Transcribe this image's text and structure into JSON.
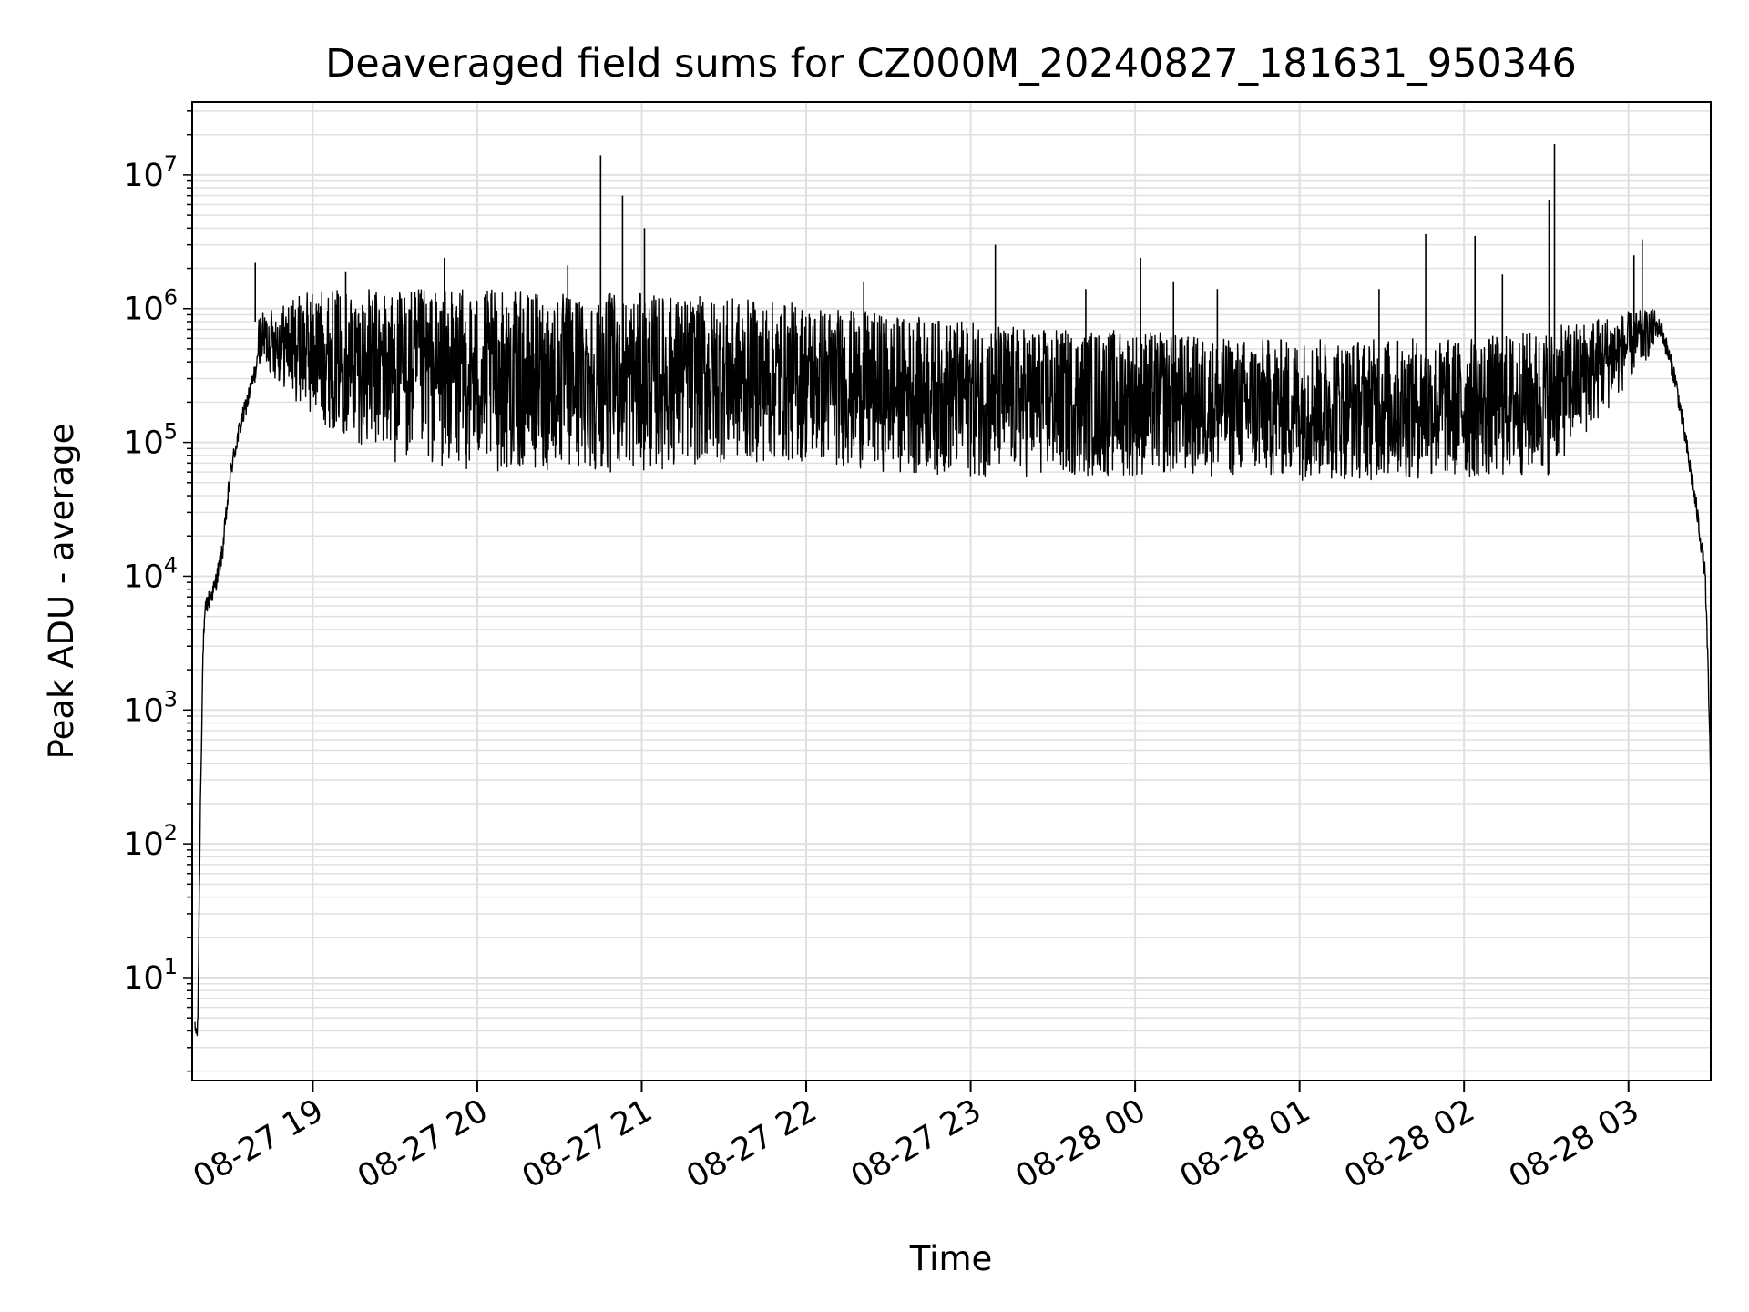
{
  "chart_data": {
    "type": "line",
    "title": "Deaveraged field sums for CZ000M_20240827_181631_950346",
    "xlabel": "Time",
    "ylabel": "Peak ADU - average",
    "yscale": "log",
    "grid": true,
    "legend": "none",
    "line_color": "#000000",
    "grid_color": "#e0e0e0",
    "xlim": [
      "2024-08-27 18:16",
      "2024-08-28 03:30"
    ],
    "ylim": [
      1.7,
      35000000
    ],
    "xticks": [
      {
        "value": "2024-08-27 19:00",
        "label": "08-27 19"
      },
      {
        "value": "2024-08-27 20:00",
        "label": "08-27 20"
      },
      {
        "value": "2024-08-27 21:00",
        "label": "08-27 21"
      },
      {
        "value": "2024-08-27 22:00",
        "label": "08-27 22"
      },
      {
        "value": "2024-08-27 23:00",
        "label": "08-27 23"
      },
      {
        "value": "2024-08-28 00:00",
        "label": "08-28 00"
      },
      {
        "value": "2024-08-28 01:00",
        "label": "08-28 01"
      },
      {
        "value": "2024-08-28 02:00",
        "label": "08-28 02"
      },
      {
        "value": "2024-08-28 03:00",
        "label": "08-28 03"
      }
    ],
    "yticks": [
      {
        "value": 10,
        "base": "10",
        "exp": "1"
      },
      {
        "value": 100,
        "base": "10",
        "exp": "2"
      },
      {
        "value": 1000,
        "base": "10",
        "exp": "3"
      },
      {
        "value": 10000,
        "base": "10",
        "exp": "4"
      },
      {
        "value": 100000,
        "base": "10",
        "exp": "5"
      },
      {
        "value": 1000000,
        "base": "10",
        "exp": "6"
      },
      {
        "value": 10000000,
        "base": "10",
        "exp": "7"
      }
    ],
    "series": [
      {
        "x": [
          "2024-08-27 18:17",
          "2024-08-27 18:18",
          "2024-08-27 18:19",
          "2024-08-27 18:20",
          "2024-08-27 18:21",
          "2024-08-27 18:24",
          "2024-08-27 18:27",
          "2024-08-27 18:30",
          "2024-08-27 18:33",
          "2024-08-27 18:36",
          "2024-08-27 18:40",
          "2024-08-27 18:44",
          "2024-08-27 18:48",
          "2024-08-27 18:52",
          "2024-08-27 18:55",
          "2024-08-27 18:58",
          "2024-08-27 19:00",
          "2024-08-27 19:05",
          "2024-08-27 19:10",
          "2024-08-27 19:15",
          "2024-08-27 19:20",
          "2024-08-27 19:30",
          "2024-08-27 19:45",
          "2024-08-27 20:00",
          "2024-08-27 20:15",
          "2024-08-27 20:30",
          "2024-08-27 20:45",
          "2024-08-27 21:00",
          "2024-08-27 21:15",
          "2024-08-27 21:30",
          "2024-08-27 21:45",
          "2024-08-27 22:00",
          "2024-08-27 22:15",
          "2024-08-27 22:30",
          "2024-08-27 22:45",
          "2024-08-27 23:00",
          "2024-08-27 23:15",
          "2024-08-27 23:30",
          "2024-08-27 23:45",
          "2024-08-28 00:00",
          "2024-08-28 00:15",
          "2024-08-28 00:30",
          "2024-08-28 00:45",
          "2024-08-28 01:00",
          "2024-08-28 01:15",
          "2024-08-28 01:30",
          "2024-08-28 01:45",
          "2024-08-28 02:00",
          "2024-08-28 02:15",
          "2024-08-28 02:30",
          "2024-08-28 02:40",
          "2024-08-28 02:50",
          "2024-08-28 03:00",
          "2024-08-28 03:06",
          "2024-08-28 03:12",
          "2024-08-28 03:17",
          "2024-08-28 03:21",
          "2024-08-28 03:25",
          "2024-08-28 03:28",
          "2024-08-28 03:29",
          "2024-08-28 03:30"
        ],
        "y": [
          4,
          4,
          200,
          3000,
          6000,
          8000,
          15000,
          60000,
          120000,
          200000,
          400000,
          600000,
          600000,
          500000,
          450000,
          400000,
          300000,
          200000,
          150000,
          120000,
          100000,
          90000,
          85000,
          80000,
          85000,
          100000,
          150000,
          180000,
          160000,
          150000,
          130000,
          120000,
          110000,
          100000,
          90000,
          80000,
          75000,
          72000,
          70000,
          68000,
          66000,
          65000,
          63000,
          62000,
          61000,
          60000,
          60000,
          60000,
          62000,
          70000,
          120000,
          300000,
          600000,
          800000,
          700000,
          300000,
          100000,
          30000,
          10000,
          2000,
          300
        ]
      }
    ],
    "envelope": {
      "x": [
        "2024-08-27 18:40",
        "2024-08-27 19:00",
        "2024-08-27 19:30",
        "2024-08-27 20:00",
        "2024-08-27 20:30",
        "2024-08-27 21:00",
        "2024-08-27 21:30",
        "2024-08-27 22:00",
        "2024-08-27 22:30",
        "2024-08-27 23:00",
        "2024-08-27 23:30",
        "2024-08-28 00:00",
        "2024-08-28 00:30",
        "2024-08-28 01:00",
        "2024-08-28 01:30",
        "2024-08-28 02:00",
        "2024-08-28 02:30",
        "2024-08-28 02:50",
        "2024-08-28 03:10"
      ],
      "upper": [
        900000,
        1400000,
        1400000,
        1400000,
        1300000,
        1300000,
        1200000,
        1100000,
        900000,
        800000,
        700000,
        700000,
        600000,
        600000,
        600000,
        600000,
        700000,
        900000,
        1000000
      ],
      "lower": [
        400000,
        150000,
        70000,
        60000,
        60000,
        60000,
        70000,
        70000,
        60000,
        55000,
        55000,
        55000,
        55000,
        52000,
        52000,
        52000,
        55000,
        150000,
        500000
      ]
    },
    "spikes": [
      {
        "x": "2024-08-27 18:39",
        "y": 2200000
      },
      {
        "x": "2024-08-27 19:12",
        "y": 1900000
      },
      {
        "x": "2024-08-27 19:48",
        "y": 2400000
      },
      {
        "x": "2024-08-27 20:33",
        "y": 2100000
      },
      {
        "x": "2024-08-27 20:45",
        "y": 14000000
      },
      {
        "x": "2024-08-27 20:53",
        "y": 7000000
      },
      {
        "x": "2024-08-27 21:01",
        "y": 4000000
      },
      {
        "x": "2024-08-27 22:21",
        "y": 1600000
      },
      {
        "x": "2024-08-27 23:09",
        "y": 3000000
      },
      {
        "x": "2024-08-27 23:42",
        "y": 1400000
      },
      {
        "x": "2024-08-28 00:02",
        "y": 2400000
      },
      {
        "x": "2024-08-28 00:14",
        "y": 1600000
      },
      {
        "x": "2024-08-28 00:30",
        "y": 1400000
      },
      {
        "x": "2024-08-28 01:29",
        "y": 1400000
      },
      {
        "x": "2024-08-28 01:46",
        "y": 3600000
      },
      {
        "x": "2024-08-28 02:04",
        "y": 3500000
      },
      {
        "x": "2024-08-28 02:14",
        "y": 1800000
      },
      {
        "x": "2024-08-28 02:33",
        "y": 17000000
      },
      {
        "x": "2024-08-28 02:31",
        "y": 6500000
      },
      {
        "x": "2024-08-28 03:05",
        "y": 3300000
      },
      {
        "x": "2024-08-28 03:02",
        "y": 2500000
      }
    ]
  }
}
